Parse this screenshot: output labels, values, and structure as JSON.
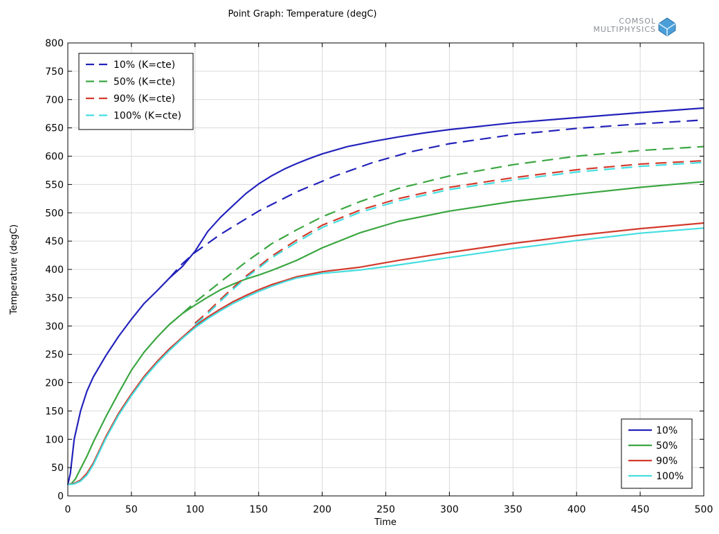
{
  "chart_data": {
    "type": "line",
    "title": "Point Graph: Temperature (degC)",
    "xlabel": "Time",
    "ylabel": "Temperature (degC)",
    "xlim": [
      0,
      500
    ],
    "ylim": [
      0,
      800
    ],
    "xticks": [
      0,
      50,
      100,
      150,
      200,
      250,
      300,
      350,
      400,
      450,
      500
    ],
    "yticks": [
      0,
      50,
      100,
      150,
      200,
      250,
      300,
      350,
      400,
      450,
      500,
      550,
      600,
      650,
      700,
      750,
      800
    ],
    "grid": true,
    "series": [
      {
        "name": "10%",
        "style": "solid",
        "color": "#2222bb",
        "x": [
          0,
          2,
          5,
          10,
          15,
          20,
          30,
          40,
          50,
          60,
          70,
          80,
          90,
          100,
          110,
          120,
          130,
          140,
          150,
          160,
          170,
          180,
          190,
          200,
          220,
          240,
          260,
          280,
          300,
          350,
          400,
          450,
          500
        ],
        "y": [
          20,
          40,
          100,
          150,
          185,
          210,
          248,
          282,
          312,
          340,
          362,
          385,
          405,
          432,
          467,
          492,
          513,
          534,
          551,
          565,
          577,
          587,
          596,
          604,
          617,
          626,
          634,
          641,
          647,
          659,
          668,
          677,
          685
        ]
      },
      {
        "name": "50%",
        "style": "solid",
        "color": "#3aa641",
        "x": [
          0,
          3,
          6,
          10,
          15,
          20,
          30,
          40,
          50,
          60,
          70,
          80,
          90,
          100,
          110,
          120,
          130,
          140,
          150,
          160,
          170,
          180,
          200,
          230,
          260,
          300,
          350,
          400,
          450,
          500
        ],
        "y": [
          20,
          22,
          30,
          48,
          70,
          95,
          140,
          182,
          222,
          254,
          280,
          303,
          322,
          337,
          351,
          364,
          374,
          383,
          390,
          398,
          407,
          416,
          438,
          465,
          485,
          503,
          520,
          533,
          545,
          555
        ]
      },
      {
        "name": "90%",
        "style": "solid",
        "color": "#d33a2c",
        "x": [
          0,
          5,
          10,
          15,
          20,
          30,
          40,
          50,
          60,
          70,
          80,
          90,
          100,
          110,
          120,
          130,
          140,
          150,
          160,
          170,
          180,
          200,
          230,
          260,
          300,
          350,
          400,
          450,
          500
        ],
        "y": [
          20,
          22,
          28,
          40,
          58,
          105,
          146,
          180,
          211,
          237,
          260,
          280,
          300,
          316,
          330,
          343,
          354,
          364,
          373,
          380,
          387,
          396,
          404,
          416,
          430,
          446,
          460,
          472,
          482
        ]
      },
      {
        "name": "100%",
        "style": "solid",
        "color": "#44dde0",
        "x": [
          0,
          5,
          10,
          15,
          20,
          30,
          40,
          50,
          60,
          70,
          80,
          90,
          100,
          110,
          120,
          130,
          140,
          150,
          160,
          170,
          180,
          200,
          230,
          260,
          300,
          350,
          400,
          450,
          500
        ],
        "y": [
          20,
          21,
          26,
          37,
          55,
          102,
          143,
          177,
          208,
          234,
          257,
          278,
          297,
          313,
          327,
          340,
          351,
          361,
          370,
          378,
          385,
          393,
          399,
          408,
          421,
          437,
          451,
          464,
          473
        ]
      },
      {
        "name": "10% (K=cte)",
        "style": "dashed",
        "color": "#2222bb",
        "x": [
          80,
          90,
          100,
          120,
          150,
          180,
          210,
          240,
          270,
          300,
          350,
          400,
          450,
          500
        ],
        "y": [
          385,
          410,
          430,
          462,
          503,
          537,
          565,
          589,
          608,
          622,
          638,
          649,
          657,
          664
        ]
      },
      {
        "name": "50% (K=cte)",
        "style": "dashed",
        "color": "#3aa641",
        "x": [
          80,
          90,
          100,
          110,
          120,
          140,
          160,
          180,
          200,
          230,
          260,
          300,
          350,
          400,
          450,
          500
        ],
        "y": [
          303,
          322,
          342,
          360,
          378,
          413,
          445,
          470,
          493,
          520,
          543,
          565,
          585,
          600,
          610,
          617
        ]
      },
      {
        "name": "90% (K=cte)",
        "style": "dashed",
        "color": "#d33a2c",
        "x": [
          100,
          110,
          120,
          130,
          140,
          150,
          160,
          180,
          200,
          230,
          260,
          300,
          350,
          400,
          450,
          500
        ],
        "y": [
          305,
          325,
          347,
          368,
          388,
          405,
          423,
          452,
          478,
          505,
          525,
          545,
          562,
          576,
          586,
          592
        ]
      },
      {
        "name": "100% (K=cte)",
        "style": "dashed",
        "color": "#44dde0",
        "x": [
          100,
          110,
          120,
          130,
          140,
          150,
          160,
          180,
          200,
          230,
          260,
          300,
          350,
          400,
          450,
          500
        ],
        "y": [
          302,
          322,
          344,
          365,
          385,
          402,
          420,
          448,
          474,
          501,
          521,
          541,
          558,
          572,
          582,
          589
        ]
      }
    ],
    "legends": [
      {
        "position": "top-left",
        "entries": [
          "10% (K=cte)",
          "50% (K=cte)",
          "90% (K=cte)",
          "100% (K=cte)"
        ]
      },
      {
        "position": "bottom-right",
        "entries": [
          "10%",
          "50%",
          "90%",
          "100%"
        ]
      }
    ]
  },
  "branding": {
    "line1": "COMSOL",
    "line2": "MULTIPHYSICS",
    "icon": "comsol-logo-icon"
  }
}
